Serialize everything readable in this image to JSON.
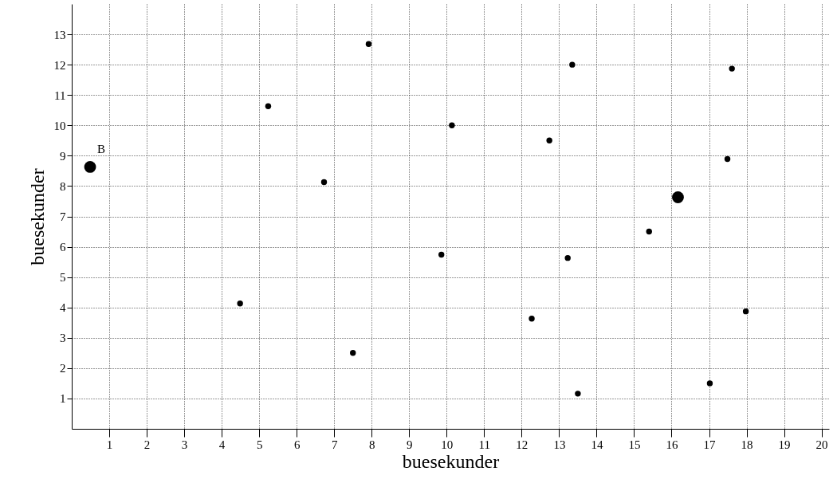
{
  "chart_data": {
    "type": "bubble",
    "xlabel": "buesekunder",
    "ylabel": "buesekunder",
    "marker": "circle",
    "grid": true,
    "x": [
      0.49,
      4.49,
      5.24,
      6.73,
      7.5,
      7.92,
      9.86,
      10.14,
      12.27,
      12.74,
      13.23,
      13.35,
      13.5,
      15.4,
      16.17,
      17.49,
      17.61,
      17.02,
      17.98
    ],
    "series": [
      {
        "color": "#000000",
        "values": [
          8.63,
          4.13,
          10.63,
          8.13,
          2.5,
          12.68,
          5.74,
          10.0,
          3.63,
          9.5,
          5.63,
          12.0,
          1.16,
          6.5,
          7.63,
          8.89,
          11.87,
          1.5,
          3.87
        ],
        "sizes": [
          1,
          0.25,
          0.25,
          0.25,
          0.25,
          0.25,
          0.25,
          0.25,
          0.25,
          0.25,
          0.25,
          0.25,
          0.25,
          0.25,
          1,
          0.25,
          0.25,
          0.25,
          0.25
        ]
      }
    ],
    "xlim": [
      0,
      20.2
    ],
    "ylim": [
      0,
      14
    ],
    "xticks": [
      1,
      2,
      3,
      4,
      5,
      6,
      7,
      8,
      9,
      10,
      11,
      12,
      13,
      14,
      15,
      16,
      17,
      18,
      19,
      20
    ],
    "yticks": [
      1,
      2,
      3,
      4,
      5,
      6,
      7,
      8,
      9,
      10,
      11,
      12,
      13
    ],
    "annotations": [
      {
        "text": "B",
        "x": 0.49,
        "y": 8.63
      }
    ]
  }
}
